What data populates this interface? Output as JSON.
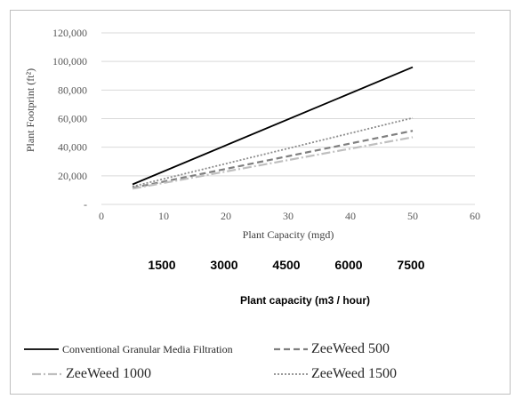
{
  "chart_data": {
    "type": "line",
    "xlabel": "Plant Capacity (mgd)",
    "ylabel": "Plant Footprint (ft²)",
    "xlim": [
      0,
      60
    ],
    "ylim": [
      0,
      120000
    ],
    "x_ticks": [
      "0",
      "10",
      "20",
      "30",
      "40",
      "50",
      "60"
    ],
    "y_ticks": [
      "-",
      "20,000",
      "40,000",
      "60,000",
      "80,000",
      "100,000",
      "120,000"
    ],
    "grid": "horizontal",
    "legend_position": "bottom",
    "series": [
      {
        "name": "Conventional Granular Media Filtration",
        "color": "#000000",
        "style": "solid",
        "x": [
          5,
          50
        ],
        "y": [
          14000,
          96000
        ]
      },
      {
        "name": "ZeeWeed 500",
        "color": "#7f7f7f",
        "style": "dashed",
        "x": [
          5,
          50
        ],
        "y": [
          11500,
          51500
        ]
      },
      {
        "name": "ZeeWeed 1000",
        "color": "#bfbfbf",
        "style": "dashdot",
        "x": [
          5,
          50
        ],
        "y": [
          11000,
          47000
        ]
      },
      {
        "name": "ZeeWeed 1500",
        "color": "#8c8c8c",
        "style": "dotted",
        "x": [
          5,
          50
        ],
        "y": [
          12500,
          60500
        ]
      }
    ],
    "secondary_axis": {
      "label": "Plant capacity (m3 / hour)",
      "ticks": [
        {
          "label": "1500",
          "x": 10
        },
        {
          "label": "3000",
          "x": 20
        },
        {
          "label": "4500",
          "x": 30
        },
        {
          "label": "6000",
          "x": 40
        },
        {
          "label": "7500",
          "x": 50
        }
      ]
    }
  }
}
